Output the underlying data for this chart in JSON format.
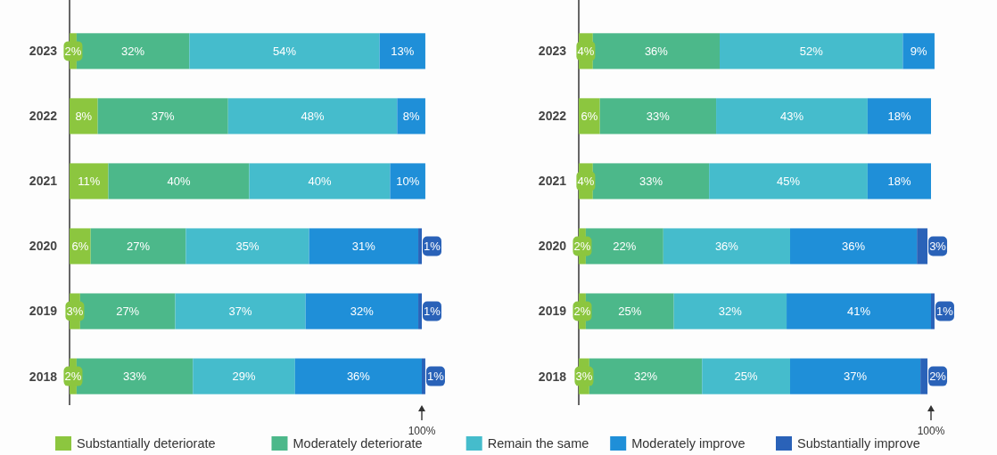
{
  "chart_data": [
    {
      "type": "bar",
      "orientation": "horizontal",
      "stacked": true,
      "legend": "bottom",
      "tick_labels": "y",
      "categories": [
        "2023",
        "2022",
        "2021",
        "2020",
        "2019",
        "2018"
      ],
      "annotations": [
        "100%"
      ],
      "series": [
        {
          "name": "Substantially deteriorate",
          "color": "#8cc63f",
          "values": [
            2,
            8,
            11,
            6,
            3,
            2
          ],
          "value_labels": [
            "2%",
            "8%",
            "11%",
            "6%",
            "3%",
            "2%"
          ]
        },
        {
          "name": "Moderately deteriorate",
          "color": "#4cb88a",
          "values": [
            32,
            37,
            40,
            27,
            27,
            33
          ],
          "value_labels": [
            "32%",
            "37%",
            "40%",
            "27%",
            "27%",
            "33%"
          ]
        },
        {
          "name": "Remain the same",
          "color": "#45bccc",
          "values": [
            54,
            48,
            40,
            35,
            37,
            29
          ],
          "value_labels": [
            "54%",
            "48%",
            "40%",
            "35%",
            "37%",
            "29%"
          ]
        },
        {
          "name": "Moderately improve",
          "color": "#1f8fd8",
          "values": [
            13,
            8,
            10,
            31,
            32,
            36
          ],
          "value_labels": [
            "13%",
            "8%",
            "10%",
            "31%",
            "32%",
            "36%"
          ]
        },
        {
          "name": "Substantially improve",
          "color": "#2a62b8",
          "values": [
            null,
            null,
            null,
            1,
            1,
            1
          ],
          "value_labels": [
            null,
            null,
            null,
            "1%",
            "1%",
            "1%"
          ]
        }
      ]
    },
    {
      "type": "bar",
      "orientation": "horizontal",
      "stacked": true,
      "tick_labels": "y",
      "categories": [
        "2023",
        "2022",
        "2021",
        "2020",
        "2019",
        "2018"
      ],
      "annotations": [
        "100%"
      ],
      "series": [
        {
          "color": "#8cc63f",
          "values": [
            4,
            6,
            4,
            2,
            2,
            3
          ],
          "value_labels": [
            "4%",
            "6%",
            "4%",
            "2%",
            "2%",
            "3%"
          ]
        },
        {
          "color": "#4cb88a",
          "values": [
            36,
            33,
            33,
            22,
            25,
            32
          ],
          "value_labels": [
            "36%",
            "33%",
            "33%",
            "22%",
            "25%",
            "32%"
          ]
        },
        {
          "color": "#45bccc",
          "values": [
            52,
            43,
            45,
            36,
            32,
            25
          ],
          "value_labels": [
            "52%",
            "43%",
            "45%",
            "36%",
            "32%",
            "25%"
          ]
        },
        {
          "color": "#1f8fd8",
          "values": [
            9,
            18,
            18,
            36,
            41,
            37
          ],
          "value_labels": [
            "9%",
            "18%",
            "18%",
            "36%",
            "41%",
            "37%"
          ]
        },
        {
          "color": "#2a62b8",
          "values": [
            null,
            null,
            null,
            3,
            1,
            2
          ],
          "value_labels": [
            null,
            null,
            null,
            "3%",
            "1%",
            "2%"
          ]
        }
      ]
    }
  ]
}
